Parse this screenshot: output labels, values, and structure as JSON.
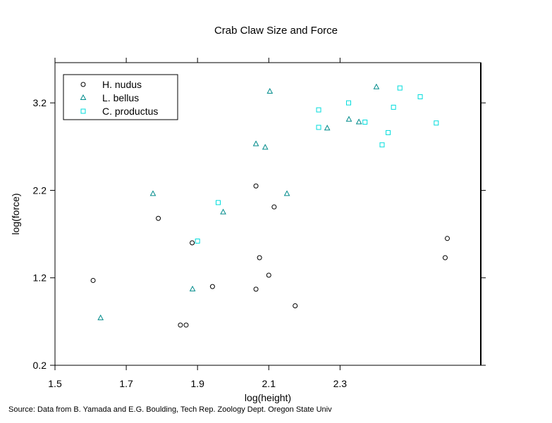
{
  "chart_data": {
    "type": "scatter",
    "title": "Crab Claw Size and Force",
    "xlabel": "log(height)",
    "ylabel": "log(force)",
    "source": "Source: Data from B. Yamada and E.G. Boulding, Tech Rep. Zoology Dept. Oregon State Univ",
    "xlim": [
      1.5,
      2.695
    ],
    "ylim": [
      0.2,
      3.66
    ],
    "xticks": [
      1.5,
      1.7,
      1.9,
      2.1,
      2.3
    ],
    "xtick_labels": [
      "1.5",
      "1.7",
      "1.9",
      "2.1",
      "2.3"
    ],
    "yticks": [
      0.2,
      1.2,
      2.2,
      3.2
    ],
    "ytick_labels": [
      "0.2",
      "1.2",
      "2.2",
      "3.2"
    ],
    "grid": false,
    "legend_position": "top-left",
    "series": [
      {
        "name": "H. nudus",
        "marker": "circle",
        "color": "#000000",
        "points": [
          [
            1.607,
            1.17
          ],
          [
            1.79,
            1.88
          ],
          [
            1.852,
            0.66
          ],
          [
            1.868,
            0.66
          ],
          [
            1.885,
            1.6
          ],
          [
            1.942,
            1.1
          ],
          [
            2.064,
            1.07
          ],
          [
            2.064,
            2.25
          ],
          [
            2.074,
            1.43
          ],
          [
            2.1,
            1.23
          ],
          [
            2.115,
            2.01
          ],
          [
            2.174,
            0.88
          ],
          [
            2.595,
            1.43
          ],
          [
            2.601,
            1.65
          ]
        ]
      },
      {
        "name": "L. bellus",
        "marker": "triangle",
        "color": "#008b8b",
        "points": [
          [
            1.628,
            0.74
          ],
          [
            1.775,
            2.16
          ],
          [
            1.886,
            1.07
          ],
          [
            1.972,
            1.95
          ],
          [
            2.064,
            2.73
          ],
          [
            2.09,
            2.69
          ],
          [
            2.103,
            3.33
          ],
          [
            2.151,
            2.16
          ],
          [
            2.264,
            2.91
          ],
          [
            2.325,
            3.01
          ],
          [
            2.353,
            2.98
          ],
          [
            2.402,
            3.38
          ]
        ]
      },
      {
        "name": "C. productus",
        "marker": "square",
        "color": "#00dcdc",
        "points": [
          [
            1.9,
            1.62
          ],
          [
            1.958,
            2.06
          ],
          [
            2.24,
            3.12
          ],
          [
            2.24,
            2.92
          ],
          [
            2.324,
            3.2
          ],
          [
            2.37,
            2.98
          ],
          [
            2.418,
            2.72
          ],
          [
            2.435,
            2.86
          ],
          [
            2.45,
            3.15
          ],
          [
            2.468,
            3.37
          ],
          [
            2.525,
            3.27
          ],
          [
            2.57,
            2.97
          ]
        ]
      }
    ]
  }
}
